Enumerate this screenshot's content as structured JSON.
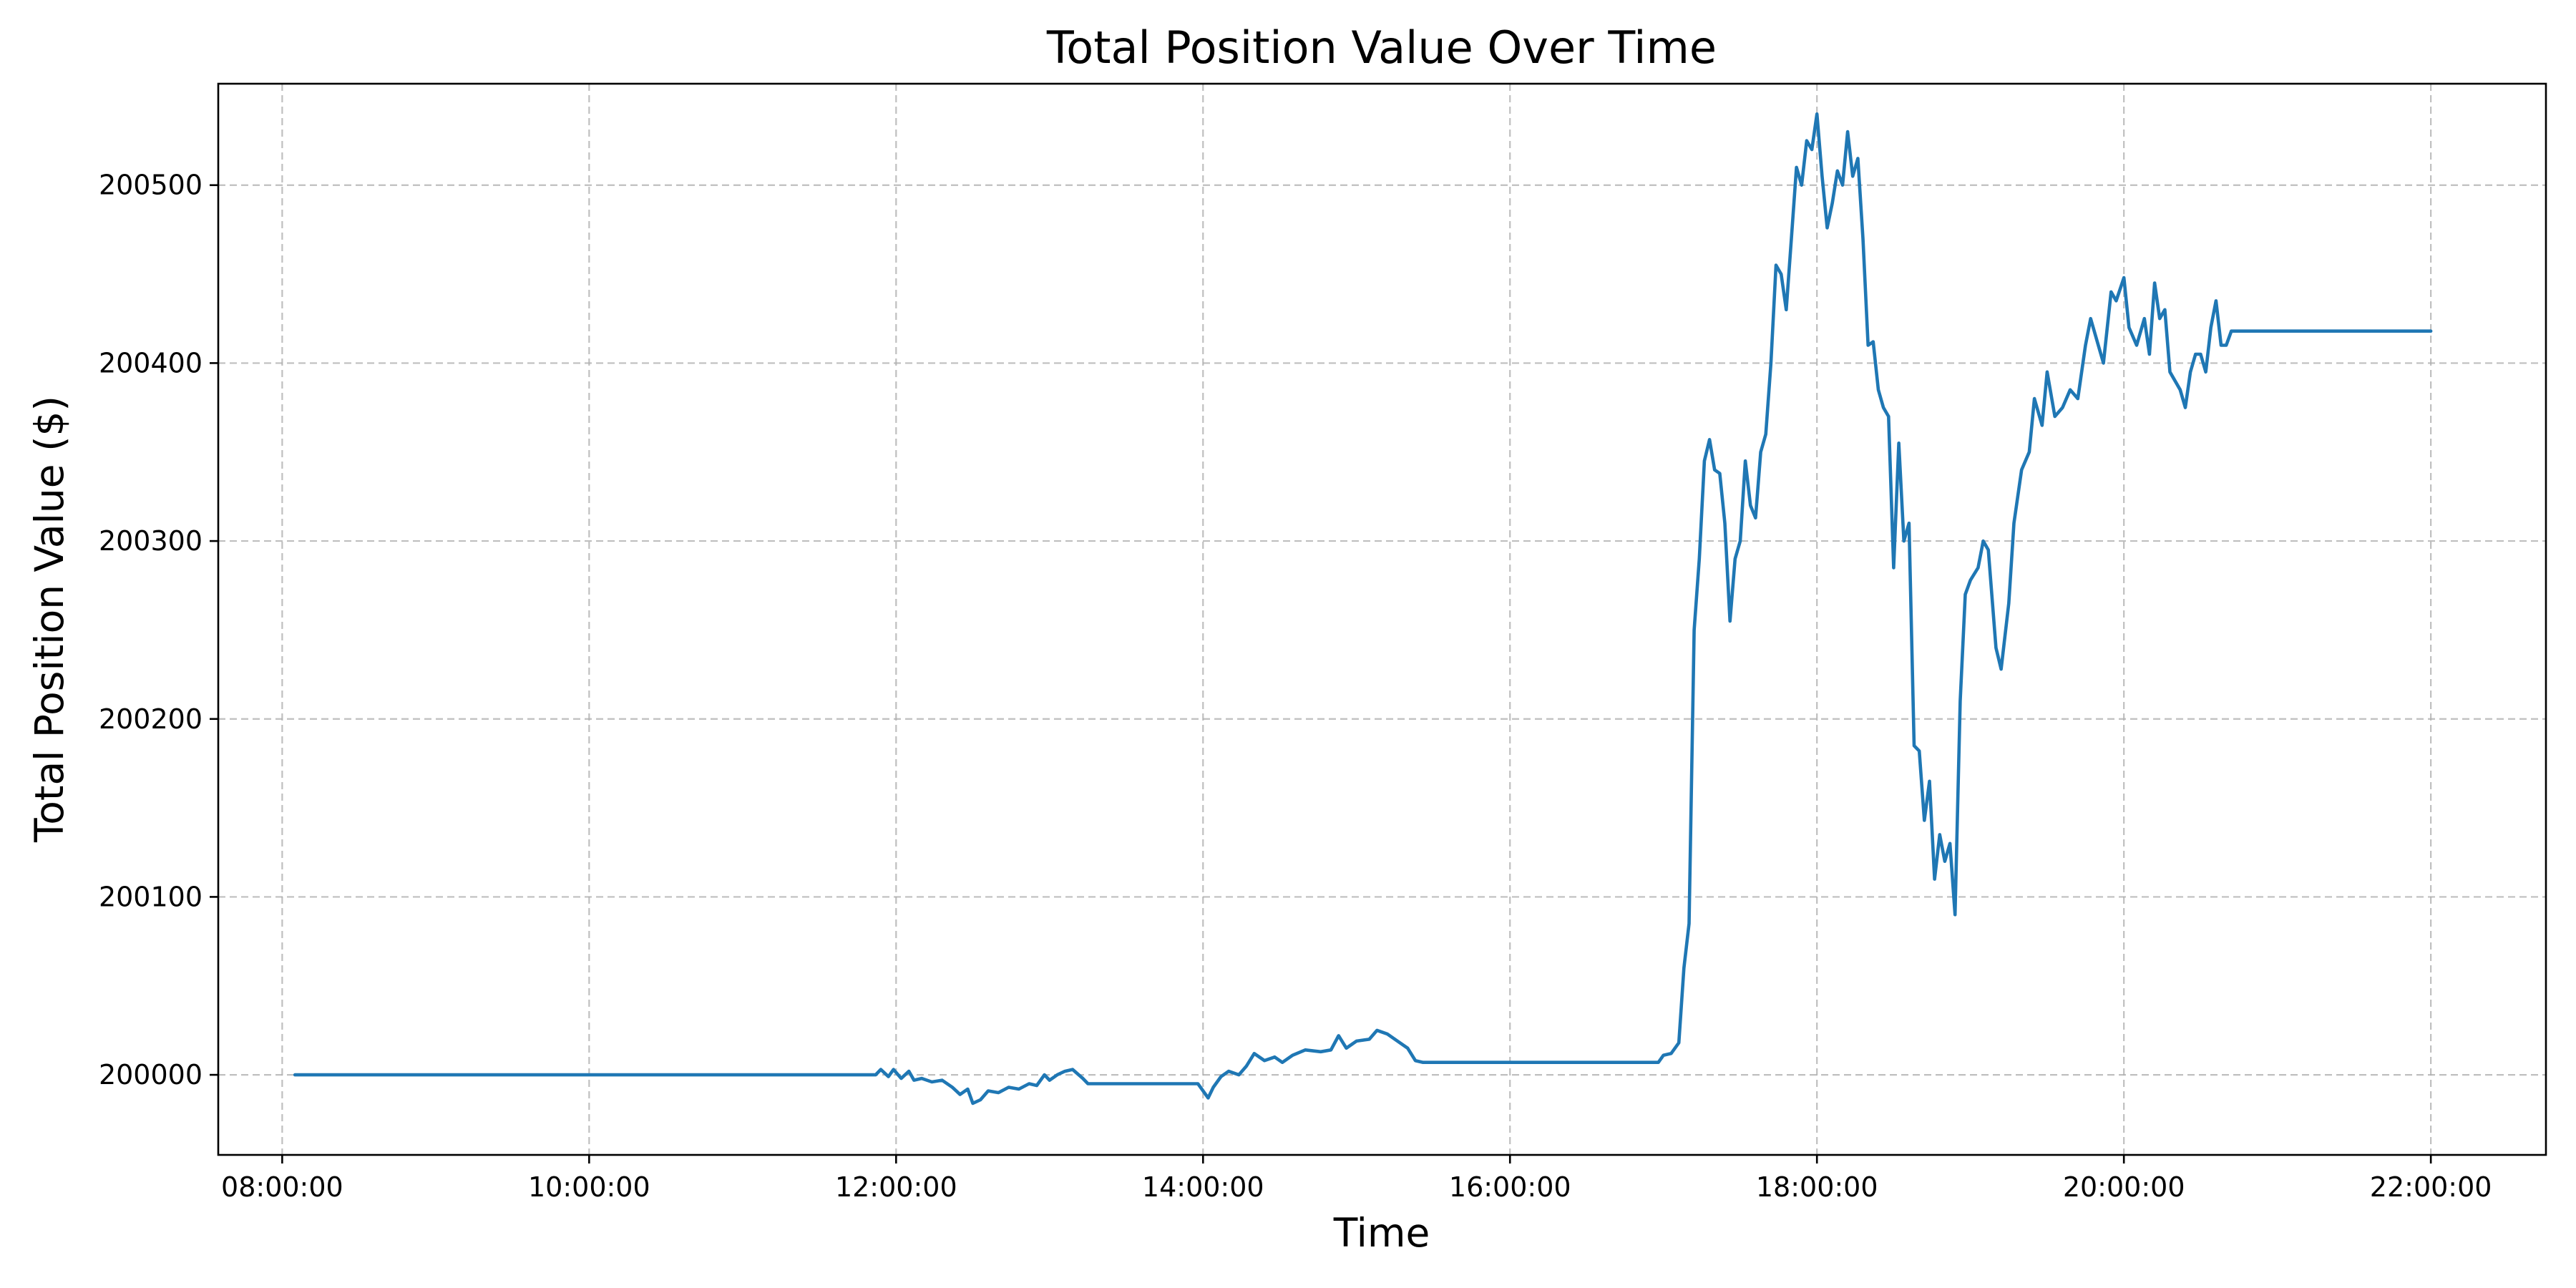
{
  "chart_data": {
    "type": "line",
    "title": "Total Position Value Over Time",
    "xlabel": "Time",
    "ylabel": "Total Position Value ($)",
    "grid": true,
    "x_tick_labels": [
      "08:00:00",
      "10:00:00",
      "12:00:00",
      "14:00:00",
      "16:00:00",
      "18:00:00",
      "20:00:00",
      "22:00:00"
    ],
    "y_tick_labels": [
      "200000",
      "200100",
      "200200",
      "200300",
      "200400",
      "200500"
    ],
    "xlim": [
      "07:35",
      "22:45"
    ],
    "ylim": [
      199955,
      200557
    ],
    "series": [
      {
        "color": "#1f77b4",
        "points": [
          [
            "08:05",
            200000
          ],
          [
            "11:52",
            200000
          ],
          [
            "11:54",
            200003
          ],
          [
            "11:57",
            199999
          ],
          [
            "11:59",
            200003
          ],
          [
            "12:02",
            199998
          ],
          [
            "12:05",
            200002
          ],
          [
            "12:07",
            199997
          ],
          [
            "12:10",
            199998
          ],
          [
            "12:14",
            199996
          ],
          [
            "12:18",
            199997
          ],
          [
            "12:22",
            199993
          ],
          [
            "12:25",
            199989
          ],
          [
            "12:28",
            199992
          ],
          [
            "12:30",
            199984
          ],
          [
            "12:33",
            199986
          ],
          [
            "12:36",
            199991
          ],
          [
            "12:40",
            199990
          ],
          [
            "12:44",
            199993
          ],
          [
            "12:48",
            199992
          ],
          [
            "12:52",
            199995
          ],
          [
            "12:55",
            199994
          ],
          [
            "12:58",
            200000
          ],
          [
            "13:00",
            199997
          ],
          [
            "13:03",
            200000
          ],
          [
            "13:06",
            200002
          ],
          [
            "13:09",
            200003
          ],
          [
            "13:13",
            199998
          ],
          [
            "13:15",
            199995
          ],
          [
            "13:58",
            199995
          ],
          [
            "14:00",
            199991
          ],
          [
            "14:02",
            199987
          ],
          [
            "14:04",
            199993
          ],
          [
            "14:07",
            199999
          ],
          [
            "14:10",
            200002
          ],
          [
            "14:14",
            200000
          ],
          [
            "14:17",
            200005
          ],
          [
            "14:20",
            200012
          ],
          [
            "14:24",
            200008
          ],
          [
            "14:28",
            200010
          ],
          [
            "14:31",
            200007
          ],
          [
            "14:35",
            200011
          ],
          [
            "14:40",
            200014
          ],
          [
            "14:46",
            200013
          ],
          [
            "14:50",
            200014
          ],
          [
            "14:53",
            200022
          ],
          [
            "14:56",
            200015
          ],
          [
            "15:00",
            200019
          ],
          [
            "15:05",
            200020
          ],
          [
            "15:08",
            200025
          ],
          [
            "15:12",
            200023
          ],
          [
            "15:16",
            200019
          ],
          [
            "15:20",
            200015
          ],
          [
            "15:23",
            200008
          ],
          [
            "15:26",
            200007
          ],
          [
            "16:58",
            200007
          ],
          [
            "17:00",
            200011
          ],
          [
            "17:03",
            200012
          ],
          [
            "17:06",
            200018
          ],
          [
            "17:08",
            200060
          ],
          [
            "17:10",
            200085
          ],
          [
            "17:12",
            200250
          ],
          [
            "17:14",
            200290
          ],
          [
            "17:16",
            200345
          ],
          [
            "17:18",
            200357
          ],
          [
            "17:20",
            200340
          ],
          [
            "17:22",
            200338
          ],
          [
            "17:24",
            200310
          ],
          [
            "17:26",
            200255
          ],
          [
            "17:28",
            200290
          ],
          [
            "17:30",
            200300
          ],
          [
            "17:32",
            200345
          ],
          [
            "17:34",
            200320
          ],
          [
            "17:36",
            200313
          ],
          [
            "17:38",
            200350
          ],
          [
            "17:40",
            200360
          ],
          [
            "17:42",
            200400
          ],
          [
            "17:44",
            200455
          ],
          [
            "17:46",
            200450
          ],
          [
            "17:48",
            200430
          ],
          [
            "17:50",
            200470
          ],
          [
            "17:52",
            200510
          ],
          [
            "17:54",
            200500
          ],
          [
            "17:56",
            200525
          ],
          [
            "17:58",
            200520
          ],
          [
            "18:00",
            200540
          ],
          [
            "18:02",
            200505
          ],
          [
            "18:04",
            200476
          ],
          [
            "18:06",
            200490
          ],
          [
            "18:08",
            200508
          ],
          [
            "18:10",
            200500
          ],
          [
            "18:12",
            200530
          ],
          [
            "18:14",
            200505
          ],
          [
            "18:16",
            200515
          ],
          [
            "18:18",
            200470
          ],
          [
            "18:20",
            200410
          ],
          [
            "18:22",
            200412
          ],
          [
            "18:24",
            200385
          ],
          [
            "18:26",
            200375
          ],
          [
            "18:28",
            200370
          ],
          [
            "18:30",
            200285
          ],
          [
            "18:32",
            200355
          ],
          [
            "18:34",
            200300
          ],
          [
            "18:36",
            200310
          ],
          [
            "18:38",
            200185
          ],
          [
            "18:40",
            200182
          ],
          [
            "18:42",
            200143
          ],
          [
            "18:44",
            200165
          ],
          [
            "18:46",
            200110
          ],
          [
            "18:48",
            200135
          ],
          [
            "18:50",
            200120
          ],
          [
            "18:52",
            200130
          ],
          [
            "18:54",
            200090
          ],
          [
            "18:56",
            200210
          ],
          [
            "18:58",
            200270
          ],
          [
            "19:00",
            200278
          ],
          [
            "19:03",
            200285
          ],
          [
            "19:05",
            200300
          ],
          [
            "19:07",
            200295
          ],
          [
            "19:10",
            200240
          ],
          [
            "19:12",
            200228
          ],
          [
            "19:15",
            200265
          ],
          [
            "19:17",
            200310
          ],
          [
            "19:20",
            200340
          ],
          [
            "19:23",
            200350
          ],
          [
            "19:25",
            200380
          ],
          [
            "19:28",
            200365
          ],
          [
            "19:30",
            200395
          ],
          [
            "19:33",
            200370
          ],
          [
            "19:36",
            200375
          ],
          [
            "19:39",
            200385
          ],
          [
            "19:42",
            200380
          ],
          [
            "19:45",
            200410
          ],
          [
            "19:47",
            200425
          ],
          [
            "19:50",
            200410
          ],
          [
            "19:52",
            200400
          ],
          [
            "19:55",
            200440
          ],
          [
            "19:57",
            200435
          ],
          [
            "20:00",
            200448
          ],
          [
            "20:02",
            200420
          ],
          [
            "20:05",
            200410
          ],
          [
            "20:08",
            200425
          ],
          [
            "20:10",
            200405
          ],
          [
            "20:12",
            200445
          ],
          [
            "20:14",
            200425
          ],
          [
            "20:16",
            200430
          ],
          [
            "20:18",
            200395
          ],
          [
            "20:20",
            200390
          ],
          [
            "20:22",
            200385
          ],
          [
            "20:24",
            200375
          ],
          [
            "20:26",
            200395
          ],
          [
            "20:28",
            200405
          ],
          [
            "20:30",
            200405
          ],
          [
            "20:32",
            200395
          ],
          [
            "20:34",
            200420
          ],
          [
            "20:36",
            200435
          ],
          [
            "20:38",
            200410
          ],
          [
            "20:40",
            200410
          ],
          [
            "20:42",
            200418
          ],
          [
            "22:00",
            200418
          ]
        ]
      }
    ]
  }
}
